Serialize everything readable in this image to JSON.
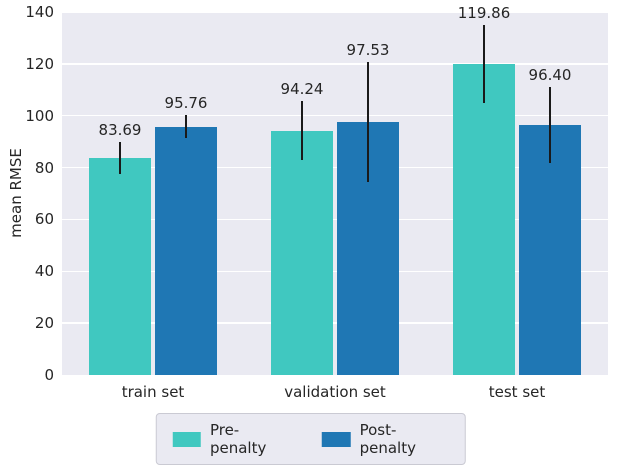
{
  "figure": {
    "background": "#ffffff",
    "plot_background": "#eaeaf2",
    "grid_color": "#ffffff",
    "text_color": "#262626",
    "error_bar_color": "#1a1a1a"
  },
  "chart_data": {
    "type": "bar",
    "title": "",
    "xlabel": "",
    "ylabel": "mean RMSE",
    "categories": [
      "train set",
      "validation set",
      "test set"
    ],
    "series": [
      {
        "name": "Pre-penalty",
        "color": "#40c8c0",
        "values": [
          83.69,
          94.24,
          119.86
        ],
        "errors": [
          6,
          11.5,
          15
        ],
        "labels": [
          "83.69",
          "94.24",
          "119.86"
        ]
      },
      {
        "name": "Post-penalty",
        "color": "#1f77b4",
        "values": [
          95.76,
          97.53,
          96.4
        ],
        "errors": [
          4.5,
          23,
          14.5
        ],
        "labels": [
          "95.76",
          "97.53",
          "96.40"
        ]
      }
    ],
    "ylim": [
      0,
      140
    ],
    "yticks": [
      0,
      20,
      40,
      60,
      80,
      100,
      120,
      140
    ],
    "grid": true,
    "legend_position": "lower center, below axes"
  }
}
